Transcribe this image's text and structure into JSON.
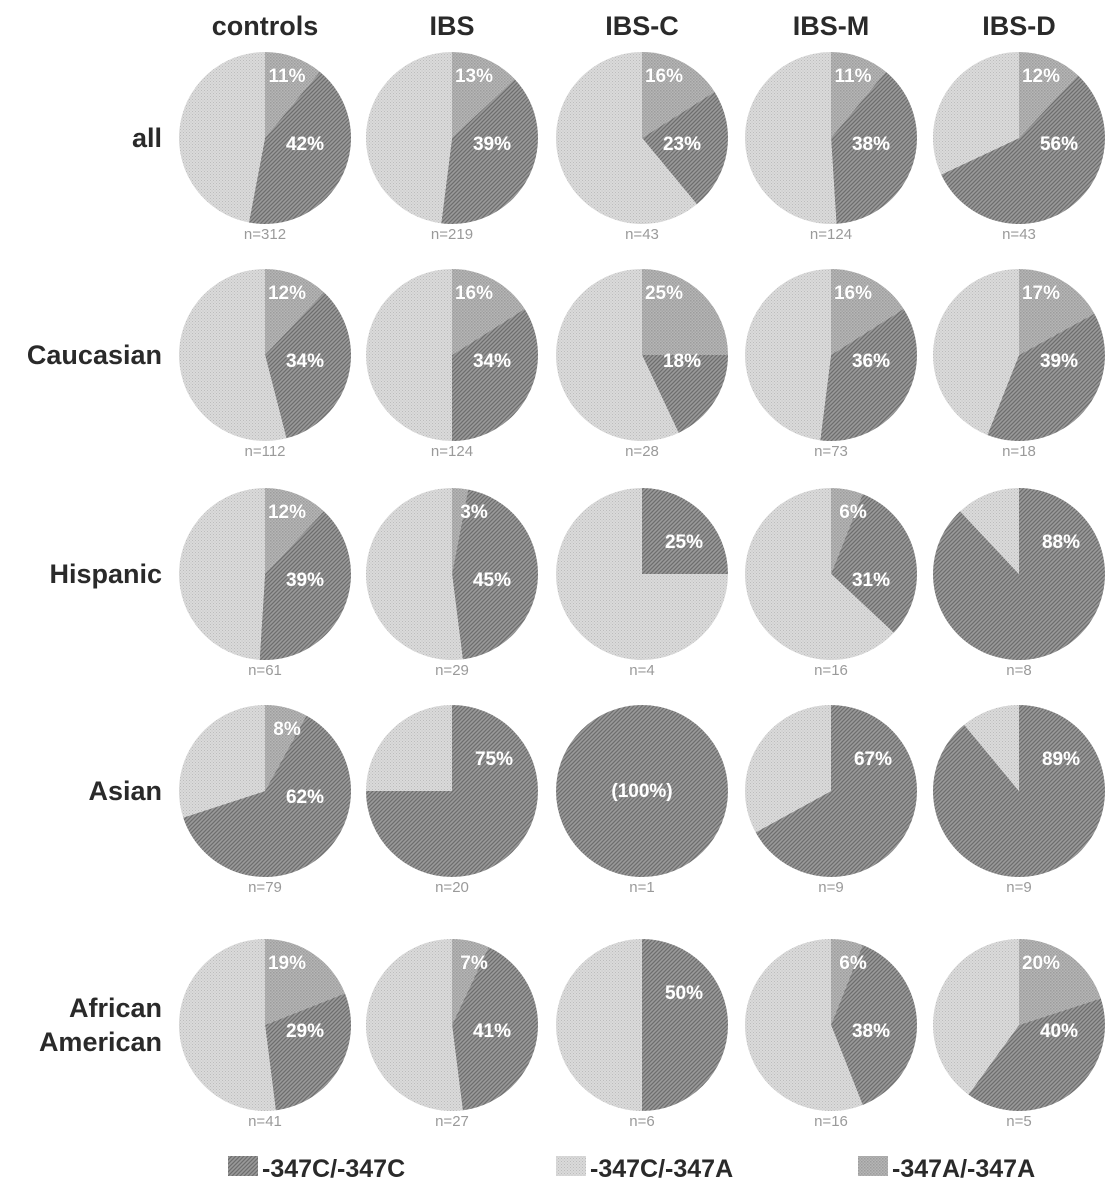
{
  "chart_data": {
    "type": "pie",
    "columns": [
      "controls",
      "IBS",
      "IBS-C",
      "IBS-M",
      "IBS-D"
    ],
    "rows": [
      {
        "label": [
          "all"
        ],
        "name": "all"
      },
      {
        "label": [
          "Caucasian"
        ],
        "name": "caucasian"
      },
      {
        "label": [
          "Hispanic"
        ],
        "name": "hispanic"
      },
      {
        "label": [
          "Asian"
        ],
        "name": "asian"
      },
      {
        "label": [
          "African",
          "American"
        ],
        "name": "african-american"
      }
    ],
    "legend": {
      "placement": "bottom",
      "entries": [
        {
          "label": "-347C/-347C",
          "color": "#8f8f8f",
          "pattern": "dark"
        },
        {
          "label": "-347C/-347A",
          "color": "#d6d6d6",
          "pattern": "light"
        },
        {
          "label": "-347A/-347A",
          "color": "#ababab",
          "pattern": "medium"
        }
      ]
    },
    "pies": [
      [
        {
          "n": "n=312",
          "values": [
            42,
            47,
            11
          ],
          "labels": [
            "42%",
            null,
            "11%"
          ]
        },
        {
          "n": "n=219",
          "values": [
            39,
            48,
            13
          ],
          "labels": [
            "39%",
            null,
            "13%"
          ]
        },
        {
          "n": "n=43",
          "values": [
            23,
            61,
            16
          ],
          "labels": [
            "23%",
            null,
            "16%"
          ]
        },
        {
          "n": "n=124",
          "values": [
            38,
            51,
            11
          ],
          "labels": [
            "38%",
            null,
            "11%"
          ]
        },
        {
          "n": "n=43",
          "values": [
            56,
            32,
            12
          ],
          "labels": [
            "56%",
            null,
            "12%"
          ]
        }
      ],
      [
        {
          "n": "n=112",
          "values": [
            34,
            54,
            12
          ],
          "labels": [
            "34%",
            null,
            "12%"
          ]
        },
        {
          "n": "n=124",
          "values": [
            34,
            50,
            16
          ],
          "labels": [
            "34%",
            null,
            "16%"
          ]
        },
        {
          "n": "n=28",
          "values": [
            18,
            57,
            25
          ],
          "labels": [
            "18%",
            null,
            "25%"
          ]
        },
        {
          "n": "n=73",
          "values": [
            36,
            48,
            16
          ],
          "labels": [
            "36%",
            null,
            "16%"
          ]
        },
        {
          "n": "n=18",
          "values": [
            39,
            44,
            17
          ],
          "labels": [
            "39%",
            null,
            "17%"
          ]
        }
      ],
      [
        {
          "n": "n=61",
          "values": [
            39,
            49,
            12
          ],
          "labels": [
            "39%",
            null,
            "12%"
          ]
        },
        {
          "n": "n=29",
          "values": [
            45,
            52,
            3
          ],
          "labels": [
            "45%",
            null,
            "3%"
          ]
        },
        {
          "n": "n=4",
          "values": [
            25,
            75,
            0
          ],
          "labels": [
            "25%",
            null,
            null
          ]
        },
        {
          "n": "n=16",
          "values": [
            31,
            63,
            6
          ],
          "labels": [
            "31%",
            null,
            "6%"
          ]
        },
        {
          "n": "n=8",
          "values": [
            88,
            12,
            0
          ],
          "labels": [
            "88%",
            null,
            null
          ]
        }
      ],
      [
        {
          "n": "n=79",
          "values": [
            62,
            30,
            8
          ],
          "labels": [
            "62%",
            null,
            "8%"
          ]
        },
        {
          "n": "n=20",
          "values": [
            75,
            25,
            0
          ],
          "labels": [
            "75%",
            null,
            null
          ]
        },
        {
          "n": "n=1",
          "values": [
            100,
            0,
            0
          ],
          "labels": [
            "(100%)",
            null,
            null
          ]
        },
        {
          "n": "n=9",
          "values": [
            67,
            33,
            0
          ],
          "labels": [
            "67%",
            null,
            null
          ]
        },
        {
          "n": "n=9",
          "values": [
            89,
            11,
            0
          ],
          "labels": [
            "89%",
            null,
            null
          ]
        }
      ],
      [
        {
          "n": "n=41",
          "values": [
            29,
            52,
            19
          ],
          "labels": [
            "29%",
            null,
            "19%"
          ]
        },
        {
          "n": "n=27",
          "values": [
            41,
            52,
            7
          ],
          "labels": [
            "41%",
            null,
            "7%"
          ]
        },
        {
          "n": "n=6",
          "values": [
            50,
            50,
            0
          ],
          "labels": [
            "50%",
            null,
            null
          ]
        },
        {
          "n": "n=16",
          "values": [
            38,
            56,
            6
          ],
          "labels": [
            "38%",
            null,
            "6%"
          ]
        },
        {
          "n": "n=5",
          "values": [
            40,
            40,
            20
          ],
          "labels": [
            "40%",
            null,
            "20%"
          ]
        }
      ]
    ]
  }
}
